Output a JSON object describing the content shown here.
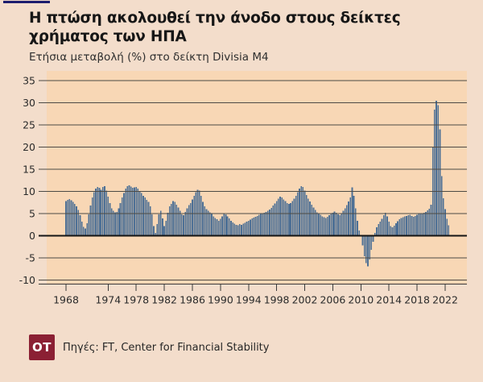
{
  "page": {
    "background": "#f3ddcb",
    "accent_bar_color": "#1c1c6e"
  },
  "header": {
    "title": "Η πτώση ακολουθεί την άνοδο στους δείκτες χρήματος των ΗΠΑ",
    "subtitle": "Ετήσια μεταβολή (%) στο δείκτη Divisia M4"
  },
  "footer": {
    "logo_text": "OT",
    "logo_bg": "#8b2034",
    "source": "Πηγές: FT, Center for Financial Stability"
  },
  "chart_data": {
    "type": "bar",
    "title": "Η πτώση ακολουθεί την άνοδο στους δείκτες χρήματος των ΗΠΑ",
    "subtitle": "Ετήσια μεταβολή (%) στο δείκτη Divisia M4",
    "unit": "%",
    "x_start": 1968.0,
    "x_step": 0.25,
    "xlim": [
      1965.25,
      2025.1
    ],
    "ylim": [
      -10,
      35
    ],
    "x_ticks": [
      1968,
      1974,
      1978,
      1982,
      1986,
      1990,
      1994,
      1998,
      2002,
      2006,
      2010,
      2014,
      2018,
      2022
    ],
    "y_ticks": [
      35,
      30,
      25,
      20,
      15,
      10,
      5,
      0,
      -5,
      -10
    ],
    "grid": true,
    "bar_color": "#4e7095",
    "plot_bg": "#f8d7b5",
    "grid_color": "#4d4b45",
    "zero_line_color": "#141414",
    "axis_color": "#3a3a3a",
    "tick_label_color": "#2b2b2b",
    "values": [
      7.8,
      8.1,
      8.3,
      8.0,
      7.6,
      7.2,
      6.6,
      5.8,
      4.6,
      3.2,
      2.0,
      1.6,
      2.8,
      4.8,
      6.8,
      8.6,
      9.8,
      10.6,
      11.0,
      10.8,
      10.4,
      11.0,
      11.2,
      10.2,
      8.8,
      7.4,
      6.2,
      5.6,
      5.3,
      5.4,
      6.2,
      7.4,
      8.6,
      9.6,
      10.6,
      11.2,
      11.4,
      11.1,
      10.8,
      10.9,
      11.0,
      10.6,
      10.0,
      9.6,
      9.0,
      8.6,
      8.1,
      7.6,
      6.6,
      4.8,
      2.2,
      0.6,
      2.6,
      4.8,
      5.6,
      3.9,
      2.2,
      3.4,
      5.2,
      6.6,
      7.2,
      7.8,
      7.6,
      7.0,
      6.4,
      5.6,
      4.8,
      4.6,
      5.4,
      6.2,
      6.9,
      7.4,
      8.2,
      9.0,
      9.8,
      10.4,
      10.2,
      9.0,
      7.6,
      6.6,
      6.0,
      5.6,
      5.3,
      5.0,
      4.4,
      4.0,
      3.7,
      3.4,
      3.8,
      4.4,
      5.0,
      4.8,
      4.4,
      3.9,
      3.4,
      3.0,
      2.7,
      2.5,
      2.4,
      2.6,
      2.5,
      2.7,
      2.9,
      3.2,
      3.4,
      3.6,
      3.9,
      4.1,
      4.3,
      4.5,
      4.7,
      4.9,
      5.1,
      5.2,
      5.4,
      5.6,
      5.9,
      6.3,
      6.8,
      7.3,
      7.8,
      8.4,
      8.8,
      8.6,
      8.2,
      7.8,
      7.4,
      7.2,
      7.4,
      7.8,
      8.4,
      9.0,
      9.8,
      10.6,
      11.2,
      11.0,
      10.2,
      9.2,
      8.4,
      7.7,
      7.0,
      6.4,
      5.8,
      5.3,
      5.0,
      4.7,
      4.4,
      4.2,
      4.0,
      4.3,
      4.6,
      4.9,
      5.2,
      5.5,
      5.2,
      4.8,
      4.6,
      5.0,
      5.6,
      6.2,
      6.9,
      7.7,
      8.6,
      10.9,
      9.0,
      6.2,
      3.4,
      1.2,
      0.2,
      -2.2,
      -4.6,
      -6.2,
      -6.9,
      -5.4,
      -3.2,
      -1.4,
      0.6,
      1.9,
      2.6,
      3.2,
      3.8,
      4.6,
      5.2,
      4.4,
      3.2,
      2.2,
      1.9,
      2.3,
      2.8,
      3.3,
      3.7,
      4.0,
      4.2,
      4.4,
      4.5,
      4.6,
      4.7,
      4.5,
      4.3,
      4.5,
      4.7,
      4.9,
      5.0,
      5.1,
      5.2,
      5.4,
      5.7,
      6.1,
      7.0,
      20.0,
      28.5,
      30.5,
      29.5,
      24.0,
      13.5,
      8.5,
      6.0,
      3.8,
      2.4
    ]
  }
}
